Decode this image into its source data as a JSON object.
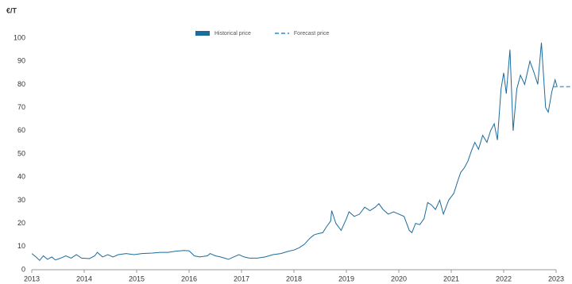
{
  "chart_data": {
    "type": "line",
    "y_label": "€/T",
    "xlim": [
      2013,
      2023.3
    ],
    "xticks": [
      2013,
      2014,
      2015,
      2016,
      2017,
      2018,
      2019,
      2020,
      2021,
      2022,
      2023
    ],
    "ylim": [
      0,
      100
    ],
    "yticks": [
      0,
      10,
      20,
      30,
      40,
      50,
      60,
      70,
      80,
      90,
      100
    ],
    "grid": false,
    "series": [
      {
        "name": "Historical price",
        "color": "#1b6c9c",
        "dash": false,
        "x": [
          2013.0,
          2013.08,
          2013.15,
          2013.22,
          2013.3,
          2013.38,
          2013.45,
          2013.55,
          2013.65,
          2013.75,
          2013.85,
          2013.95,
          2014.1,
          2014.2,
          2014.25,
          2014.35,
          2014.45,
          2014.55,
          2014.65,
          2014.8,
          2014.95,
          2015.1,
          2015.3,
          2015.45,
          2015.6,
          2015.75,
          2015.9,
          2016.0,
          2016.1,
          2016.2,
          2016.35,
          2016.4,
          2016.5,
          2016.6,
          2016.75,
          2016.85,
          2016.95,
          2017.05,
          2017.15,
          2017.3,
          2017.45,
          2017.6,
          2017.75,
          2017.9,
          2018.0,
          2018.1,
          2018.2,
          2018.3,
          2018.38,
          2018.45,
          2018.55,
          2018.62,
          2018.7,
          2018.72,
          2018.8,
          2018.9,
          2019.0,
          2019.05,
          2019.15,
          2019.25,
          2019.35,
          2019.45,
          2019.55,
          2019.62,
          2019.7,
          2019.8,
          2019.9,
          2020.0,
          2020.1,
          2020.2,
          2020.25,
          2020.32,
          2020.4,
          2020.48,
          2020.55,
          2020.62,
          2020.7,
          2020.78,
          2020.85,
          2020.95,
          2021.05,
          2021.12,
          2021.18,
          2021.25,
          2021.32,
          2021.38,
          2021.45,
          2021.52,
          2021.6,
          2021.68,
          2021.75,
          2021.82,
          2021.88,
          2021.95,
          2022.0,
          2022.05,
          2022.12,
          2022.18,
          2022.25,
          2022.32,
          2022.4,
          2022.5,
          2022.58,
          2022.65,
          2022.72,
          2022.8,
          2022.85,
          2022.92,
          2022.98,
          2023.02
        ],
        "values": [
          7,
          5.5,
          4,
          6,
          4.5,
          5.5,
          4.2,
          5,
          6,
          5,
          6.5,
          5,
          4.8,
          6,
          7.5,
          5.5,
          6.5,
          5.5,
          6.5,
          7,
          6.5,
          7,
          7.2,
          7.5,
          7.5,
          8,
          8.3,
          8.2,
          6,
          5.5,
          6,
          7,
          6,
          5.5,
          4.5,
          5.5,
          6.5,
          5.5,
          5,
          5,
          5.5,
          6.5,
          7,
          8,
          8.5,
          9.5,
          11,
          13.5,
          15,
          15.5,
          16,
          18.5,
          21,
          25.5,
          20,
          17,
          22,
          25,
          23,
          24,
          27,
          25.5,
          27,
          28.5,
          26,
          24,
          25,
          24,
          23,
          17,
          16,
          20,
          19.5,
          22,
          29,
          28,
          26,
          30,
          24,
          30,
          33,
          38,
          42,
          44,
          47,
          51,
          55,
          52,
          58,
          55,
          60,
          63,
          56,
          78,
          85,
          76,
          95,
          60,
          78,
          84,
          80,
          90,
          85,
          80,
          98,
          70,
          68,
          77,
          82,
          79
        ]
      },
      {
        "name": "Forecast price",
        "color": "#5aa9d6",
        "dash": true,
        "x": [
          2022.95,
          2023.28
        ],
        "values": [
          79,
          79
        ]
      }
    ]
  }
}
